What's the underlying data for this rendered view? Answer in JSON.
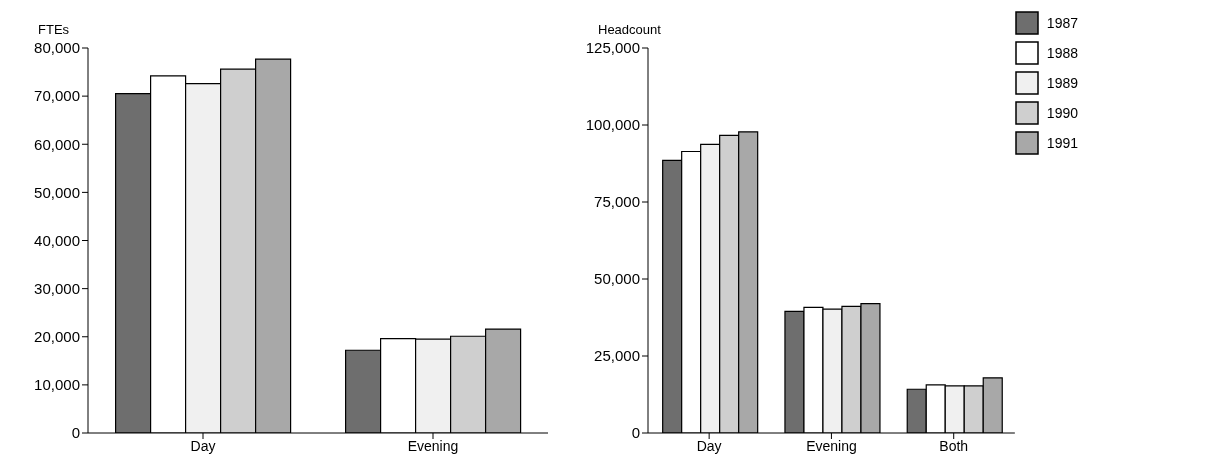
{
  "chart_data": [
    {
      "type": "bar",
      "ylabel": "FTEs",
      "categories": [
        "Day",
        "Evening"
      ],
      "series": [
        {
          "color": "#6e6e6e",
          "values": [
            70500,
            17200
          ]
        },
        {
          "color": "#ffffff",
          "values": [
            74200,
            19600
          ]
        },
        {
          "color": "#f0f0f0",
          "values": [
            72600,
            19500
          ]
        },
        {
          "color": "#cfcfcf",
          "values": [
            75600,
            20100
          ]
        },
        {
          "color": "#a8a8a8",
          "values": [
            77700,
            21600
          ]
        }
      ],
      "ylim": [
        0,
        80000
      ],
      "yticks": [
        0,
        {
          "value": 10000,
          "label": "10,000"
        },
        {
          "value": 20000,
          "label": "20,000"
        },
        {
          "value": 30000,
          "label": "30,000"
        },
        {
          "value": 40000,
          "label": "40,000"
        },
        {
          "value": 50000,
          "label": "50,000"
        },
        {
          "value": 60000,
          "label": "60,000"
        },
        {
          "value": 70000,
          "label": "70,000"
        },
        {
          "value": 80000,
          "label": "80,000"
        }
      ],
      "grid": false,
      "legend": false
    },
    {
      "type": "bar",
      "ylabel": "Headcount",
      "categories": [
        "Day",
        "Evening",
        "Both"
      ],
      "series": [
        {
          "name": "1987",
          "color": "#6e6e6e",
          "values": [
            88500,
            39500,
            14200
          ]
        },
        {
          "name": "1988",
          "color": "#ffffff",
          "values": [
            91400,
            40800,
            15600
          ]
        },
        {
          "name": "1989",
          "color": "#f0f0f0",
          "values": [
            93700,
            40200,
            15300
          ]
        },
        {
          "name": "1990",
          "color": "#cfcfcf",
          "values": [
            96600,
            41100,
            15300
          ]
        },
        {
          "name": "1991",
          "color": "#a8a8a8",
          "values": [
            97800,
            42000,
            17900
          ]
        }
      ],
      "ylim": [
        0,
        125000
      ],
      "yticks": [
        0,
        {
          "value": 25000,
          "label": "25,000"
        },
        {
          "value": 50000,
          "label": "50,000"
        },
        {
          "value": 75000,
          "label": "75,000"
        },
        {
          "value": 100000,
          "label": "100,000"
        },
        {
          "value": 125000,
          "label": "125,000"
        }
      ],
      "grid": false,
      "legend": "top right"
    }
  ]
}
